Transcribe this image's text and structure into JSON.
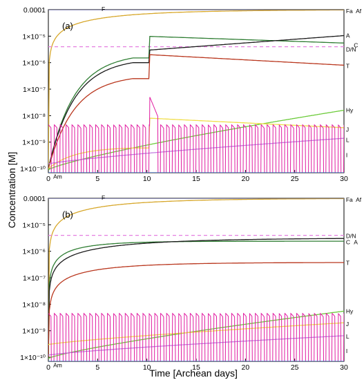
{
  "figure": {
    "ylabel": "Concentration [M]",
    "xlabel": "Time [Archean days]"
  },
  "chart_data": [
    {
      "type": "line",
      "panel_label": "(a)",
      "xlim": [
        0,
        30
      ],
      "ylim": [
        7e-11,
        0.0001
      ],
      "yscale": "log",
      "xticks": [
        0,
        5,
        10,
        15,
        20,
        25,
        30
      ],
      "xtick_labels": [
        "0",
        "5",
        "10",
        "15",
        "20",
        "25",
        "30"
      ],
      "yticks": [
        1e-10,
        1e-09,
        1e-08,
        1e-07,
        1e-06,
        1e-05,
        0.0001
      ],
      "ytick_labels": [
        "1×10⁻¹⁰",
        "1×10⁻⁹",
        "1×10⁻⁸",
        "1×10⁻⁷",
        "1×10⁻⁶",
        "1×10⁻⁵",
        "0.0001"
      ],
      "grid": false,
      "series": [
        {
          "label": "F",
          "color": "#5a5a9a",
          "kind": "const",
          "value": 0.0001,
          "label_x": 5.4,
          "label_y": 0.000105
        },
        {
          "label": "Fa",
          "color": "#d7a72a",
          "kind": "sat",
          "y0": 1e-10,
          "ymax": 0.0001,
          "k": 0.12,
          "label_x": 30.2,
          "label_y": 8.8e-05
        },
        {
          "label": "Af",
          "color": "#5a5a9a",
          "kind": "const",
          "value": 0.000102,
          "label_x": 31.2,
          "label_y": 8.8e-05
        },
        {
          "label": "D/N",
          "color": "#e57fe0",
          "kind": "const",
          "value": 4e-06,
          "dashed": true,
          "label_x": 30.2,
          "label_y": 3.2e-06
        },
        {
          "label": "C",
          "color": "#2e7d32",
          "kind": "step",
          "y0": 1e-10,
          "pre": 1.5e-06,
          "post": 9.8e-06,
          "end": 5.5e-06,
          "step_x": 10.3,
          "label_x": 31.0,
          "label_y": 4.5e-06
        },
        {
          "label": "A",
          "color": "#1a1a1a",
          "kind": "step",
          "y0": 1e-10,
          "pre": 1e-06,
          "post": 3e-06,
          "end": 1.05e-05,
          "step_x": 10.3,
          "label_x": 30.2,
          "label_y": 1.05e-05
        },
        {
          "label": "T",
          "color": "#b9361d",
          "kind": "step",
          "y0": 1e-10,
          "pre": 2.5e-07,
          "post": 2e-06,
          "end": 8e-07,
          "step_x": 10.3,
          "label_x": 30.2,
          "label_y": 7.5e-07
        },
        {
          "label": "Hy",
          "color": "#6ccb3a",
          "kind": "grow",
          "y0": 9e-11,
          "end": 1.6e-08,
          "label_x": 30.2,
          "label_y": 1.6e-08
        },
        {
          "label": "J",
          "color": "#f0de4a",
          "kind": "step",
          "y0": 1e-10,
          "pre": 6e-10,
          "post": 8e-09,
          "end": 3.5e-09,
          "step_x": 10.3,
          "label_x": 30.2,
          "label_y": 3e-09
        },
        {
          "label": "L",
          "color": "#c27ce0",
          "kind": "grow",
          "y0": 1.5e-10,
          "end": 1.4e-09,
          "label_x": 30.2,
          "label_y": 1.2e-09
        },
        {
          "label": "I",
          "color": "#e01aa0",
          "kind": "osc",
          "y_low": 7e-11,
          "y_high": 4.5e-09,
          "period": 0.6,
          "spike_x": 10.3,
          "spike_y": 5e-08,
          "label_x": 30.2,
          "label_y": 3.2e-10
        },
        {
          "label": "Am",
          "color": "#3a6fd0",
          "kind": "const",
          "value": 7e-11,
          "label_x": 0.5,
          "label_y": 5e-11
        }
      ]
    },
    {
      "type": "line",
      "panel_label": "(b)",
      "xlim": [
        0,
        30
      ],
      "ylim": [
        7e-11,
        0.0001
      ],
      "yscale": "log",
      "xticks": [
        0,
        5,
        10,
        15,
        20,
        25,
        30
      ],
      "xtick_labels": [
        "0",
        "5",
        "10",
        "15",
        "20",
        "25",
        "30"
      ],
      "yticks": [
        1e-10,
        1e-09,
        1e-08,
        1e-07,
        1e-06,
        1e-05,
        0.0001
      ],
      "ytick_labels": [
        "1×10⁻¹⁰",
        "1×10⁻⁹",
        "1×10⁻⁸",
        "1×10⁻⁷",
        "1×10⁻⁶",
        "1×10⁻⁵",
        "0.0001"
      ],
      "grid": false,
      "series": [
        {
          "label": "F",
          "color": "#5a5a9a",
          "kind": "const",
          "value": 0.0001,
          "label_x": 5.4,
          "label_y": 0.000105
        },
        {
          "label": "Fa",
          "color": "#d7a72a",
          "kind": "sat",
          "y0": 1e-10,
          "ymax": 0.0001,
          "k": 0.12,
          "label_x": 30.2,
          "label_y": 8.8e-05
        },
        {
          "label": "Af",
          "color": "#5a5a9a",
          "kind": "const",
          "value": 0.000102,
          "label_x": 31.2,
          "label_y": 8.8e-05
        },
        {
          "label": "D/N",
          "color": "#e57fe0",
          "kind": "const",
          "value": 4e-06,
          "dashed": true,
          "label_x": 30.2,
          "label_y": 3.8e-06
        },
        {
          "label": "C",
          "color": "#2e7d32",
          "kind": "sat",
          "y0": 1e-10,
          "ymax": 2.4e-06,
          "k": 0.25,
          "label_x": 30.2,
          "label_y": 2.2e-06
        },
        {
          "label": "A",
          "color": "#1a1a1a",
          "kind": "sat",
          "y0": 1e-10,
          "ymax": 3.2e-06,
          "k": 0.1,
          "label_x": 31.0,
          "label_y": 2.2e-06
        },
        {
          "label": "T",
          "color": "#b9361d",
          "kind": "sat",
          "y0": 1e-10,
          "ymax": 3.8e-07,
          "k": 0.15,
          "label_x": 30.2,
          "label_y": 3.6e-07
        },
        {
          "label": "Hy",
          "color": "#6ccb3a",
          "kind": "grow",
          "y0": 9e-11,
          "end": 5.5e-09,
          "label_x": 30.2,
          "label_y": 5.5e-09
        },
        {
          "label": "J",
          "color": "#f0de4a",
          "kind": "grow",
          "y0": 3e-10,
          "end": 2e-09,
          "label_x": 30.2,
          "label_y": 1.8e-09
        },
        {
          "label": "L",
          "color": "#c27ce0",
          "kind": "grow",
          "y0": 1.2e-10,
          "end": 6.5e-10,
          "label_x": 30.2,
          "label_y": 6e-10
        },
        {
          "label": "I",
          "color": "#e01aa0",
          "kind": "osc",
          "y_low": 7e-11,
          "y_high": 4.5e-09,
          "period": 0.6,
          "label_x": 30.2,
          "label_y": 1.7e-10
        },
        {
          "label": "Am",
          "color": "#3a6fd0",
          "kind": "const",
          "value": 7e-11,
          "label_x": 0.5,
          "label_y": 5e-11
        }
      ]
    }
  ]
}
